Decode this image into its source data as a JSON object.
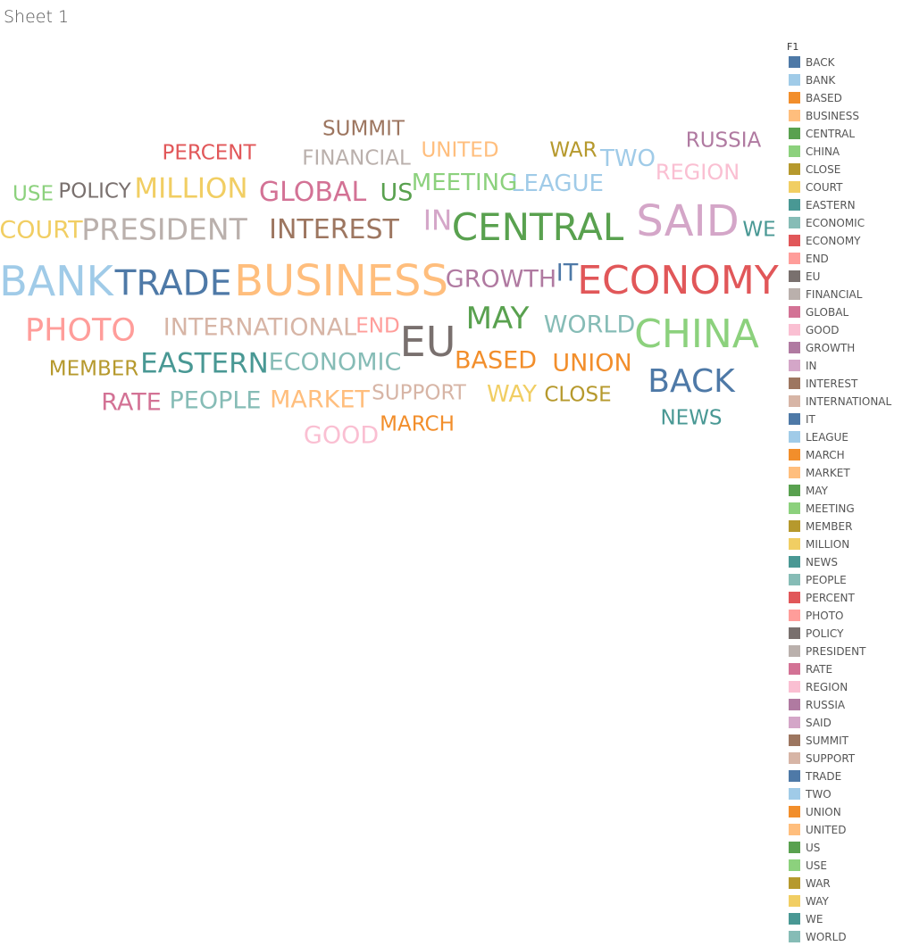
{
  "sheet": {
    "title": "Sheet 1"
  },
  "chart_data": {
    "type": "word_cloud",
    "legend_title": "F1",
    "words": [
      {
        "text": "BACK",
        "weight": 36,
        "color": "#4E79A7"
      },
      {
        "text": "BANK",
        "weight": 46,
        "color": "#A0CBE8"
      },
      {
        "text": "BASED",
        "weight": 27,
        "color": "#F28E2B"
      },
      {
        "text": "BUSINESS",
        "weight": 48,
        "color": "#FFBE7D"
      },
      {
        "text": "CENTRAL",
        "weight": 42,
        "color": "#59A14F"
      },
      {
        "text": "CHINA",
        "weight": 44,
        "color": "#8CD17D"
      },
      {
        "text": "CLOSE",
        "weight": 23,
        "color": "#B6992D"
      },
      {
        "text": "COURT",
        "weight": 27,
        "color": "#F1CE63"
      },
      {
        "text": "EASTERN",
        "weight": 31,
        "color": "#499894"
      },
      {
        "text": "ECONOMIC",
        "weight": 27,
        "color": "#86BCB6"
      },
      {
        "text": "ECONOMY",
        "weight": 44,
        "color": "#E15759"
      },
      {
        "text": "END",
        "weight": 23,
        "color": "#FF9D9A"
      },
      {
        "text": "EU",
        "weight": 46,
        "color": "#79706E"
      },
      {
        "text": "FINANCIAL",
        "weight": 23,
        "color": "#BAB0AC"
      },
      {
        "text": "GLOBAL",
        "weight": 30,
        "color": "#D37295"
      },
      {
        "text": "GOOD",
        "weight": 27,
        "color": "#FABFD2"
      },
      {
        "text": "GROWTH",
        "weight": 27,
        "color": "#B07AA1"
      },
      {
        "text": "IN",
        "weight": 31,
        "color": "#D4A6C8"
      },
      {
        "text": "INTEREST",
        "weight": 30,
        "color": "#9D7660"
      },
      {
        "text": "INTERNATIONAL",
        "weight": 27,
        "color": "#D7B5A6"
      },
      {
        "text": "IT",
        "weight": 27,
        "color": "#4E79A7"
      },
      {
        "text": "LEAGUE",
        "weight": 26,
        "color": "#A0CBE8"
      },
      {
        "text": "MARCH",
        "weight": 23,
        "color": "#F28E2B"
      },
      {
        "text": "MARKET",
        "weight": 27,
        "color": "#FFBE7D"
      },
      {
        "text": "MAY",
        "weight": 34,
        "color": "#59A14F"
      },
      {
        "text": "MEETING",
        "weight": 26,
        "color": "#8CD17D"
      },
      {
        "text": "MEMBER",
        "weight": 23,
        "color": "#B6992D"
      },
      {
        "text": "MILLION",
        "weight": 31,
        "color": "#F1CE63"
      },
      {
        "text": "NEWS",
        "weight": 23,
        "color": "#499894"
      },
      {
        "text": "PEOPLE",
        "weight": 27,
        "color": "#86BCB6"
      },
      {
        "text": "PERCENT",
        "weight": 23,
        "color": "#E15759"
      },
      {
        "text": "PHOTO",
        "weight": 35,
        "color": "#FF9D9A"
      },
      {
        "text": "POLICY",
        "weight": 23,
        "color": "#79706E"
      },
      {
        "text": "PRESIDENT",
        "weight": 33,
        "color": "#BAB0AC"
      },
      {
        "text": "RATE",
        "weight": 27,
        "color": "#D37295"
      },
      {
        "text": "REGION",
        "weight": 24,
        "color": "#FABFD2"
      },
      {
        "text": "RUSSIA",
        "weight": 23,
        "color": "#B07AA1"
      },
      {
        "text": "SAID",
        "weight": 48,
        "color": "#D4A6C8"
      },
      {
        "text": "SUMMIT",
        "weight": 23,
        "color": "#9D7660"
      },
      {
        "text": "SUPPORT",
        "weight": 23,
        "color": "#D7B5A6"
      },
      {
        "text": "TRADE",
        "weight": 39,
        "color": "#4E79A7"
      },
      {
        "text": "TWO",
        "weight": 26,
        "color": "#A0CBE8"
      },
      {
        "text": "UNION",
        "weight": 27,
        "color": "#F28E2B"
      },
      {
        "text": "UNITED",
        "weight": 23,
        "color": "#FFBE7D"
      },
      {
        "text": "US",
        "weight": 27,
        "color": "#59A14F"
      },
      {
        "text": "USE",
        "weight": 23,
        "color": "#8CD17D"
      },
      {
        "text": "WAR",
        "weight": 23,
        "color": "#B6992D"
      },
      {
        "text": "WAY",
        "weight": 26,
        "color": "#F1CE63"
      },
      {
        "text": "WE",
        "weight": 23,
        "color": "#499894"
      },
      {
        "text": "WORLD",
        "weight": 27,
        "color": "#86BCB6"
      }
    ]
  }
}
